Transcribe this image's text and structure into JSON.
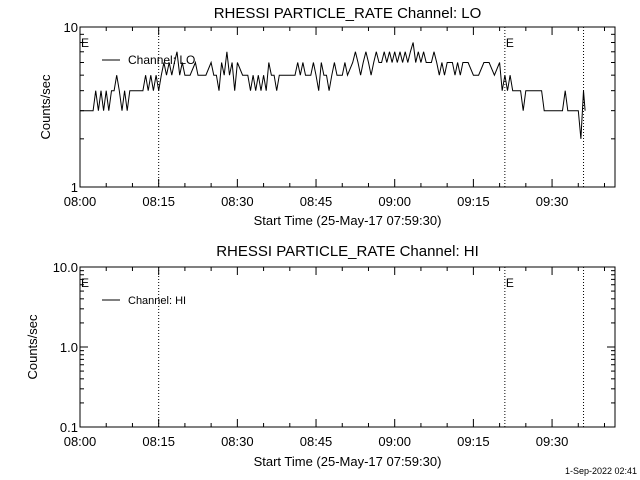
{
  "footer_stamp": "1-Sep-2022 02:41",
  "chart_data": [
    {
      "type": "line",
      "title": "RHESSI PARTICLE_RATE Channel: LO",
      "xlabel": "Start Time (25-May-17 07:59:30)",
      "ylabel": "Counts/sec",
      "y_scale": "log",
      "ylim": [
        1,
        10
      ],
      "y_ticks": [
        "1",
        "10"
      ],
      "x_ticks": [
        "08:00",
        "08:15",
        "08:30",
        "08:45",
        "09:00",
        "09:15",
        "09:30"
      ],
      "xlim_minutes": [
        0,
        102
      ],
      "event_markers": [
        {
          "minute": 15,
          "label": ""
        },
        {
          "minute": 81,
          "label": "E"
        },
        {
          "minute": 96,
          "label": ""
        }
      ],
      "left_marker_label": "E",
      "legend": {
        "label": "Channel: LO",
        "position": "top-left"
      },
      "series": [
        {
          "name": "Channel: LO",
          "points": [
            [
              0,
              3
            ],
            [
              2.5,
              3
            ],
            [
              3,
              4
            ],
            [
              3.5,
              3
            ],
            [
              4,
              4
            ],
            [
              4.5,
              3
            ],
            [
              5,
              4
            ],
            [
              5.5,
              3
            ],
            [
              6,
              4
            ],
            [
              6.5,
              4
            ],
            [
              7,
              5
            ],
            [
              7.5,
              4
            ],
            [
              8,
              3
            ],
            [
              8.5,
              4
            ],
            [
              9,
              3
            ],
            [
              9.5,
              4
            ],
            [
              12,
              4
            ],
            [
              12.5,
              5
            ],
            [
              13,
              4
            ],
            [
              13.5,
              5
            ],
            [
              14,
              4
            ],
            [
              14.5,
              5
            ],
            [
              15,
              4
            ],
            [
              15.5,
              5
            ],
            [
              16,
              6
            ],
            [
              16.5,
              5
            ],
            [
              17,
              6
            ],
            [
              17.5,
              5
            ],
            [
              18,
              6
            ],
            [
              18.5,
              7
            ],
            [
              19,
              5
            ],
            [
              19.5,
              6
            ],
            [
              20,
              5
            ],
            [
              21,
              5
            ],
            [
              22,
              6
            ],
            [
              22.5,
              5
            ],
            [
              23,
              5
            ],
            [
              24,
              5
            ],
            [
              25,
              6
            ],
            [
              25.5,
              5
            ],
            [
              26,
              5
            ],
            [
              26.5,
              4
            ],
            [
              27,
              6
            ],
            [
              27.5,
              5
            ],
            [
              28,
              7
            ],
            [
              28.5,
              5
            ],
            [
              29,
              6
            ],
            [
              29.5,
              4
            ],
            [
              30,
              6
            ],
            [
              31,
              5
            ],
            [
              32,
              5
            ],
            [
              32.5,
              4
            ],
            [
              33,
              5
            ],
            [
              33.5,
              4
            ],
            [
              34,
              5
            ],
            [
              34.5,
              4
            ],
            [
              35,
              5
            ],
            [
              35.5,
              4
            ],
            [
              36,
              6
            ],
            [
              36.5,
              5
            ],
            [
              37,
              5
            ],
            [
              37.5,
              4
            ],
            [
              38,
              5
            ],
            [
              39,
              5
            ],
            [
              40,
              5
            ],
            [
              41,
              5
            ],
            [
              41.5,
              6
            ],
            [
              42,
              5
            ],
            [
              42.5,
              6
            ],
            [
              43,
              5
            ],
            [
              44,
              5
            ],
            [
              44.5,
              6
            ],
            [
              45,
              5
            ],
            [
              45.5,
              4
            ],
            [
              46,
              6
            ],
            [
              46.5,
              5
            ],
            [
              47,
              5
            ],
            [
              47.5,
              4
            ],
            [
              48,
              5
            ],
            [
              48.5,
              6
            ],
            [
              49,
              5
            ],
            [
              50,
              5
            ],
            [
              50.5,
              6
            ],
            [
              51,
              5
            ],
            [
              52,
              6
            ],
            [
              52.5,
              7
            ],
            [
              53,
              6
            ],
            [
              53.5,
              5
            ],
            [
              54,
              6
            ],
            [
              54.5,
              7
            ],
            [
              55,
              6
            ],
            [
              55.5,
              5
            ],
            [
              56,
              6
            ],
            [
              56.5,
              7
            ],
            [
              57,
              6
            ],
            [
              57.5,
              6
            ],
            [
              58,
              7
            ],
            [
              58.5,
              6
            ],
            [
              59,
              7
            ],
            [
              59.5,
              6
            ],
            [
              60,
              7
            ],
            [
              60.5,
              6
            ],
            [
              61,
              7
            ],
            [
              61.5,
              6
            ],
            [
              62,
              7
            ],
            [
              62.5,
              6
            ],
            [
              63,
              7
            ],
            [
              63.5,
              8
            ],
            [
              64,
              6
            ],
            [
              64.5,
              7
            ],
            [
              65,
              6
            ],
            [
              65.5,
              7
            ],
            [
              66,
              6
            ],
            [
              67,
              6
            ],
            [
              67.5,
              7
            ],
            [
              68,
              6
            ],
            [
              68.5,
              5
            ],
            [
              69,
              6
            ],
            [
              69.5,
              5
            ],
            [
              70,
              6
            ],
            [
              71,
              6
            ],
            [
              71.5,
              5
            ],
            [
              72,
              6
            ],
            [
              72.5,
              5
            ],
            [
              73,
              6
            ],
            [
              74,
              6
            ],
            [
              75,
              5
            ],
            [
              76,
              5
            ],
            [
              77,
              6
            ],
            [
              78,
              6
            ],
            [
              79,
              5
            ],
            [
              80,
              6
            ],
            [
              80.5,
              4
            ],
            [
              81,
              5
            ],
            [
              81.5,
              4
            ],
            [
              82,
              5
            ],
            [
              82.5,
              4
            ],
            [
              83,
              4
            ],
            [
              84,
              4
            ],
            [
              84.5,
              3
            ],
            [
              85,
              4
            ],
            [
              86,
              4
            ],
            [
              87,
              4
            ],
            [
              88,
              4
            ],
            [
              88.5,
              3
            ],
            [
              90,
              3
            ],
            [
              91,
              3
            ],
            [
              92,
              3
            ],
            [
              92.5,
              4
            ],
            [
              93,
              3
            ],
            [
              94,
              3
            ],
            [
              95,
              3
            ],
            [
              95.5,
              2
            ],
            [
              96,
              4
            ],
            [
              96.3,
              3
            ]
          ]
        }
      ]
    },
    {
      "type": "line",
      "title": "RHESSI PARTICLE_RATE Channel: HI",
      "xlabel": "Start Time (25-May-17 07:59:30)",
      "ylabel": "Counts/sec",
      "y_scale": "log",
      "ylim": [
        0.1,
        10
      ],
      "y_ticks": [
        "0.1",
        "1.0",
        "10.0"
      ],
      "x_ticks": [
        "08:00",
        "08:15",
        "08:30",
        "08:45",
        "09:00",
        "09:15",
        "09:30"
      ],
      "xlim_minutes": [
        0,
        102
      ],
      "event_markers": [
        {
          "minute": 15,
          "label": ""
        },
        {
          "minute": 81,
          "label": "E"
        },
        {
          "minute": 96,
          "label": ""
        }
      ],
      "left_marker_label": "E",
      "legend": {
        "label": "Channel: HI",
        "position": "top-left"
      },
      "series": [
        {
          "name": "Channel: HI",
          "points": []
        }
      ]
    }
  ]
}
